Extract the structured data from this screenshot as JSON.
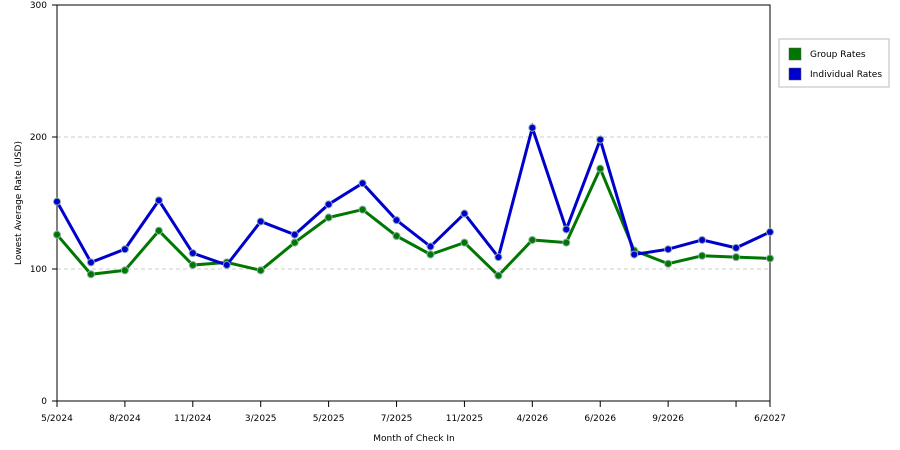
{
  "chart_data": {
    "type": "line",
    "x_label": "Month of Check In",
    "y_label": "Lowest Average Rate (USD)",
    "categories": [
      "5/2024",
      null,
      "8/2024",
      null,
      "11/2024",
      null,
      "3/2025",
      null,
      "5/2025",
      null,
      "7/2025",
      null,
      "11/2025",
      null,
      "4/2026",
      null,
      "6/2026",
      null,
      "9/2026",
      null,
      null,
      "6/2027"
    ],
    "series": [
      {
        "name": "Group Rates",
        "color": "#007700",
        "values": [
          126,
          96,
          99,
          129,
          103,
          105,
          99,
          120,
          139,
          145,
          125,
          111,
          120,
          95,
          122,
          120,
          176,
          114,
          104,
          110,
          109,
          108
        ]
      },
      {
        "name": "Individual Rates",
        "color": "#0000cc",
        "values": [
          151,
          105,
          115,
          152,
          112,
          103,
          136,
          126,
          149,
          165,
          137,
          117,
          142,
          109,
          207,
          130,
          198,
          111,
          115,
          122,
          116,
          128
        ]
      }
    ],
    "ylim": [
      0,
      300
    ],
    "yticks": [
      0,
      100,
      200,
      300
    ],
    "grid": true,
    "legend": "right"
  }
}
